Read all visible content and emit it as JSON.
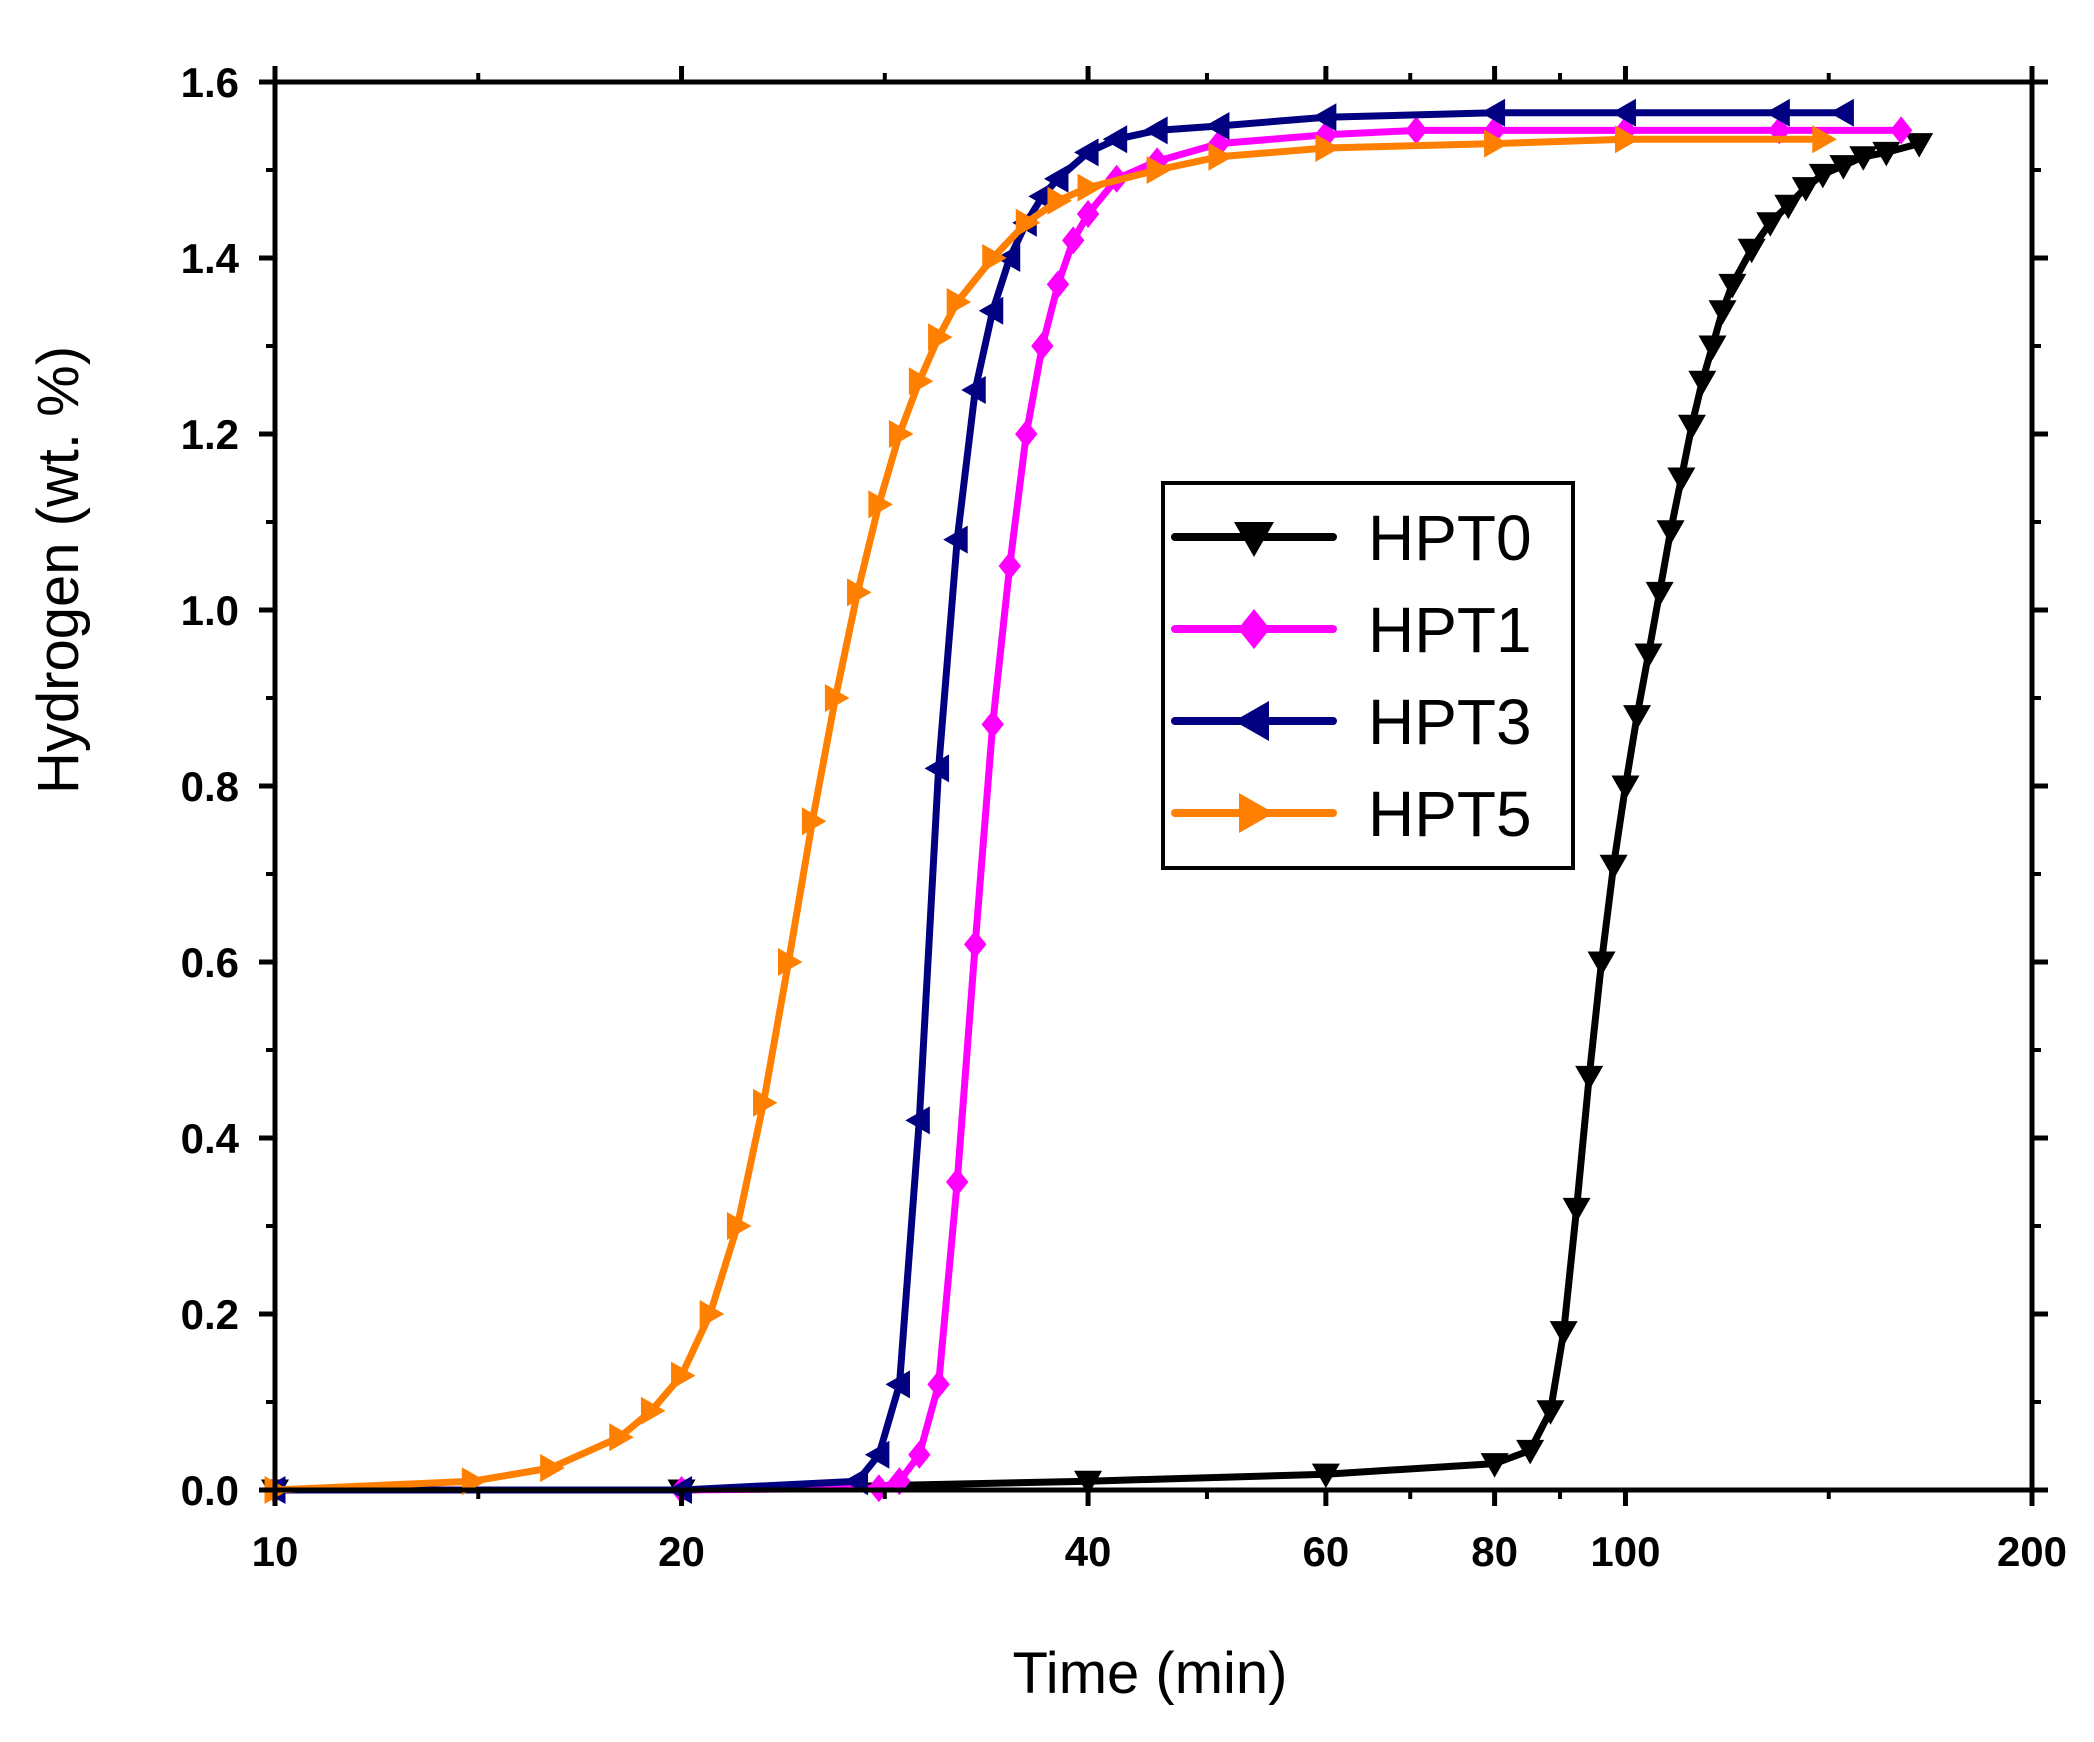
{
  "chart_data": {
    "type": "line",
    "title": "",
    "xlabel": "Time (min)",
    "ylabel": "Hydrogen (wt. %)",
    "xscale": "log",
    "xlim": [
      10,
      200
    ],
    "ylim": [
      0,
      1.6
    ],
    "xticks": [
      10,
      20,
      40,
      60,
      80,
      100,
      200
    ],
    "xtick_labels": [
      "10",
      "20",
      "40",
      "60",
      "80",
      "100",
      "200"
    ],
    "yticks": [
      0.0,
      0.2,
      0.4,
      0.6,
      0.8,
      1.0,
      1.2,
      1.4,
      1.6
    ],
    "ytick_labels": [
      "0.0",
      "0.2",
      "0.4",
      "0.6",
      "0.8",
      "1.0",
      "1.2",
      "1.4",
      "1.6"
    ],
    "grid": false,
    "legend_position": "center-right",
    "series": [
      {
        "name": "HPT0",
        "color": "#000000",
        "marker": "triangle-down",
        "x": [
          10,
          20,
          40,
          60,
          80,
          85,
          88,
          90,
          92,
          94,
          96,
          98,
          100,
          102,
          104,
          106,
          108,
          110,
          112,
          114,
          116,
          118,
          120,
          124,
          128,
          132,
          136,
          140,
          145,
          150,
          156,
          165
        ],
        "y": [
          0.0,
          0.0,
          0.01,
          0.018,
          0.03,
          0.045,
          0.09,
          0.18,
          0.32,
          0.47,
          0.6,
          0.71,
          0.8,
          0.88,
          0.95,
          1.02,
          1.09,
          1.15,
          1.21,
          1.26,
          1.3,
          1.34,
          1.37,
          1.41,
          1.44,
          1.46,
          1.48,
          1.495,
          1.505,
          1.515,
          1.52,
          1.53
        ]
      },
      {
        "name": "HPT1",
        "color": "#ff00ff",
        "marker": "diamond",
        "x": [
          10,
          20,
          28,
          29,
          30,
          31,
          32,
          33,
          34,
          35,
          36,
          37,
          38,
          39,
          40,
          42,
          45,
          50,
          60,
          70,
          80,
          100,
          130,
          160
        ],
        "y": [
          0.0,
          0.0,
          0.002,
          0.01,
          0.04,
          0.12,
          0.35,
          0.62,
          0.87,
          1.05,
          1.2,
          1.3,
          1.37,
          1.42,
          1.45,
          1.49,
          1.51,
          1.53,
          1.54,
          1.545,
          1.545,
          1.545,
          1.545,
          1.545
        ]
      },
      {
        "name": "HPT3",
        "color": "#000080",
        "marker": "triangle-left",
        "x": [
          10,
          20,
          27,
          28,
          29,
          30,
          31,
          32,
          33,
          34,
          35,
          36,
          37,
          38,
          40,
          42,
          45,
          50,
          60,
          80,
          100,
          130,
          145
        ],
        "y": [
          0.0,
          0.0,
          0.01,
          0.04,
          0.12,
          0.42,
          0.82,
          1.08,
          1.25,
          1.34,
          1.4,
          1.44,
          1.47,
          1.49,
          1.52,
          1.535,
          1.545,
          1.55,
          1.56,
          1.565,
          1.565,
          1.565,
          1.565
        ]
      },
      {
        "name": "HPT5",
        "color": "#ff8000",
        "marker": "triangle-right",
        "x": [
          10,
          14,
          16,
          18,
          19,
          20,
          21,
          22,
          23,
          24,
          25,
          26,
          27,
          28,
          29,
          30,
          31,
          32,
          34,
          36,
          38,
          40,
          45,
          50,
          60,
          80,
          100,
          140
        ],
        "y": [
          0.0,
          0.01,
          0.025,
          0.06,
          0.09,
          0.13,
          0.2,
          0.3,
          0.44,
          0.6,
          0.76,
          0.9,
          1.02,
          1.12,
          1.2,
          1.26,
          1.31,
          1.35,
          1.4,
          1.44,
          1.465,
          1.48,
          1.5,
          1.515,
          1.525,
          1.53,
          1.535,
          1.535
        ]
      }
    ]
  }
}
